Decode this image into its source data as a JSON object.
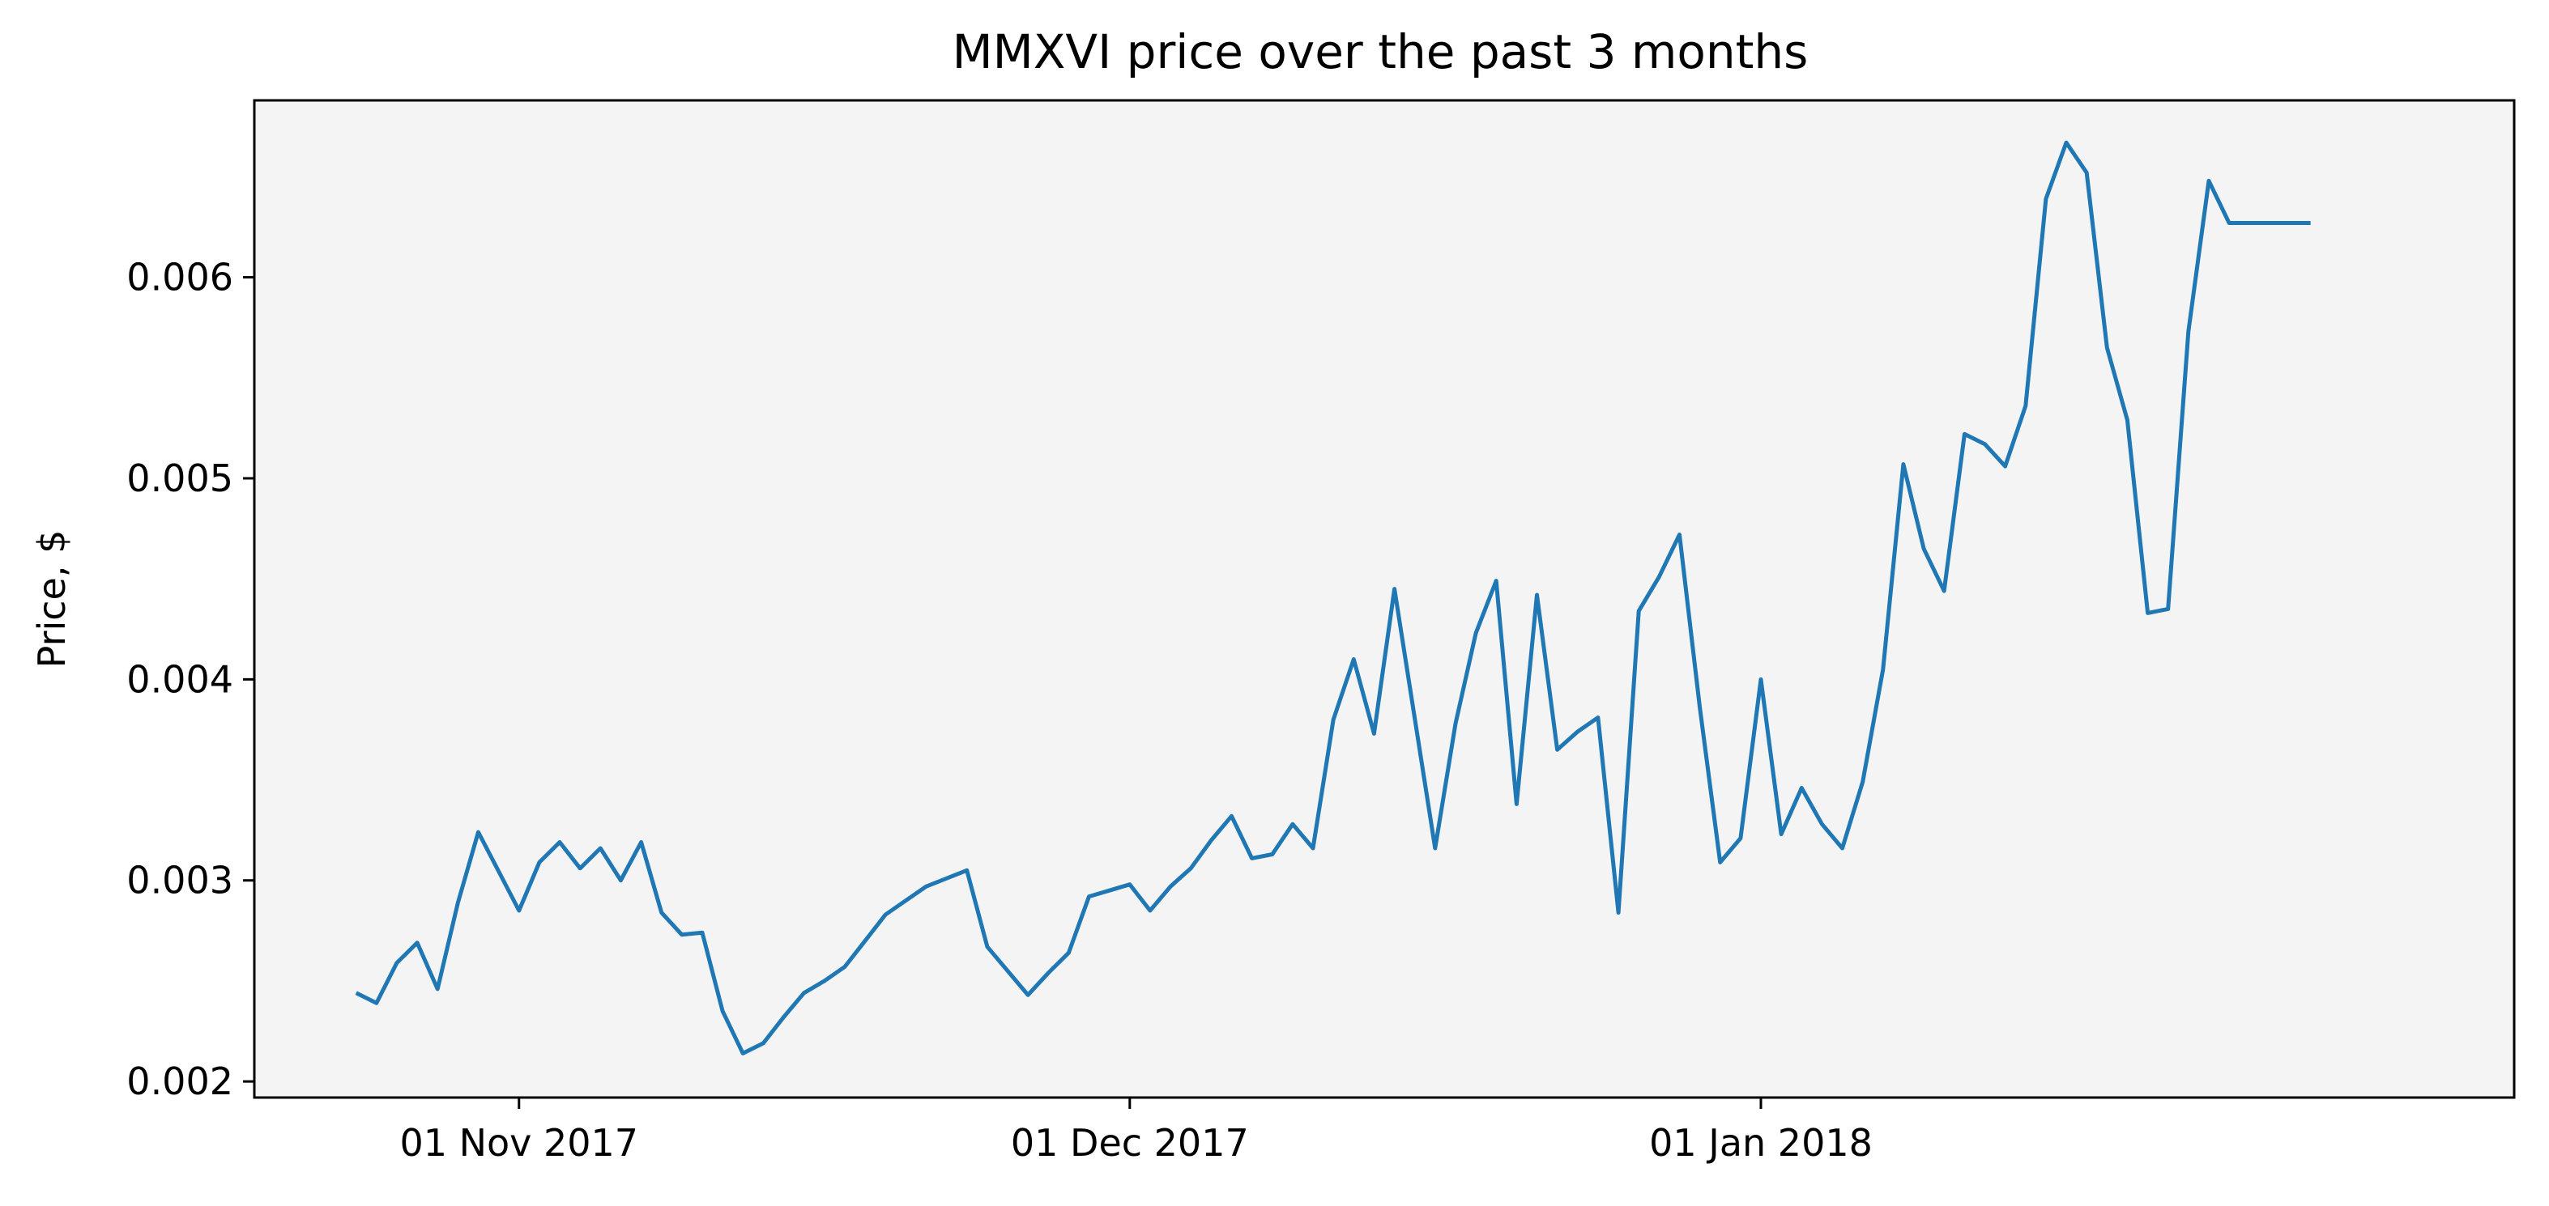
{
  "chart_data": {
    "type": "line",
    "title": "MMXVI price over the past 3 months",
    "xlabel": "",
    "ylabel": "Price, $",
    "xlim": [
      "2017-10-19",
      "2018-02-07"
    ],
    "ylim": [
      0.00192,
      0.00688
    ],
    "yticks": [
      0.002,
      0.003,
      0.004,
      0.005,
      0.006
    ],
    "ytick_labels": [
      "0.002",
      "0.003",
      "0.004",
      "0.005",
      "0.006"
    ],
    "xticks": [
      "2017-11-01",
      "2017-12-01",
      "2018-01-01"
    ],
    "xtick_labels": [
      "01 Nov 2017",
      "01 Dec 2017",
      "01 Jan 2018"
    ],
    "grid": false,
    "background": "#f4f4f4",
    "series": [
      {
        "color": "#1f77b4",
        "x": [
          "2017-10-24",
          "2017-10-25",
          "2017-10-26",
          "2017-10-27",
          "2017-10-28",
          "2017-10-29",
          "2017-10-30",
          "2017-11-01",
          "2017-11-02",
          "2017-11-03",
          "2017-11-04",
          "2017-11-05",
          "2017-11-06",
          "2017-11-07",
          "2017-11-08",
          "2017-11-09",
          "2017-11-10",
          "2017-11-11",
          "2017-11-12",
          "2017-11-13",
          "2017-11-14",
          "2017-11-15",
          "2017-11-16",
          "2017-11-17",
          "2017-11-18",
          "2017-11-19",
          "2017-11-21",
          "2017-11-23",
          "2017-11-24",
          "2017-11-26",
          "2017-11-27",
          "2017-11-28",
          "2017-11-29",
          "2017-11-30",
          "2017-12-01",
          "2017-12-02",
          "2017-12-03",
          "2017-12-04",
          "2017-12-05",
          "2017-12-06",
          "2017-12-07",
          "2017-12-08",
          "2017-12-09",
          "2017-12-10",
          "2017-12-11",
          "2017-12-12",
          "2017-12-13",
          "2017-12-14",
          "2017-12-16",
          "2017-12-17",
          "2017-12-18",
          "2017-12-19",
          "2017-12-20",
          "2017-12-21",
          "2017-12-22",
          "2017-12-23",
          "2017-12-24",
          "2017-12-25",
          "2017-12-26",
          "2017-12-27",
          "2017-12-28",
          "2017-12-29",
          "2017-12-30",
          "2017-12-31",
          "2018-01-01",
          "2018-01-02",
          "2018-01-03",
          "2018-01-04",
          "2018-01-05",
          "2018-01-06",
          "2018-01-07",
          "2018-01-08",
          "2018-01-09",
          "2018-01-10",
          "2018-01-11",
          "2018-01-12",
          "2018-01-13",
          "2018-01-14",
          "2018-01-15",
          "2018-01-16",
          "2018-01-17",
          "2018-01-18",
          "2018-01-19",
          "2018-01-20",
          "2018-01-21",
          "2018-01-22",
          "2018-01-23",
          "2018-01-24",
          "2018-01-25",
          "2018-01-26",
          "2018-01-27",
          "2018-01-28"
        ],
        "values": [
          0.00244,
          0.00239,
          0.00259,
          0.00269,
          0.00246,
          0.00289,
          0.00324,
          0.00285,
          0.00309,
          0.00319,
          0.00306,
          0.00316,
          0.003,
          0.00319,
          0.00284,
          0.00273,
          0.00274,
          0.00235,
          0.00214,
          0.00219,
          0.00232,
          0.00244,
          0.0025,
          0.00257,
          0.0027,
          0.00283,
          0.00297,
          0.00305,
          0.00267,
          0.00243,
          0.00254,
          0.00264,
          0.00292,
          0.00295,
          0.00298,
          0.00285,
          0.00297,
          0.00306,
          0.0032,
          0.00332,
          0.00311,
          0.00313,
          0.00328,
          0.00316,
          0.0038,
          0.0041,
          0.00373,
          0.00445,
          0.00316,
          0.00378,
          0.00423,
          0.00449,
          0.00338,
          0.00442,
          0.00365,
          0.00374,
          0.00381,
          0.00284,
          0.00434,
          0.00451,
          0.00472,
          0.00386,
          0.00309,
          0.00321,
          0.004,
          0.00323,
          0.00346,
          0.00328,
          0.00316,
          0.00349,
          0.00405,
          0.00507,
          0.00465,
          0.00444,
          0.00522,
          0.00517,
          0.00506,
          0.00536,
          0.00639,
          0.00667,
          0.00652,
          0.00565,
          0.00529,
          0.00433,
          0.00435,
          0.00573,
          0.00648,
          0.00627,
          0.00627,
          0.00627,
          0.00627,
          0.00627
        ]
      }
    ]
  }
}
